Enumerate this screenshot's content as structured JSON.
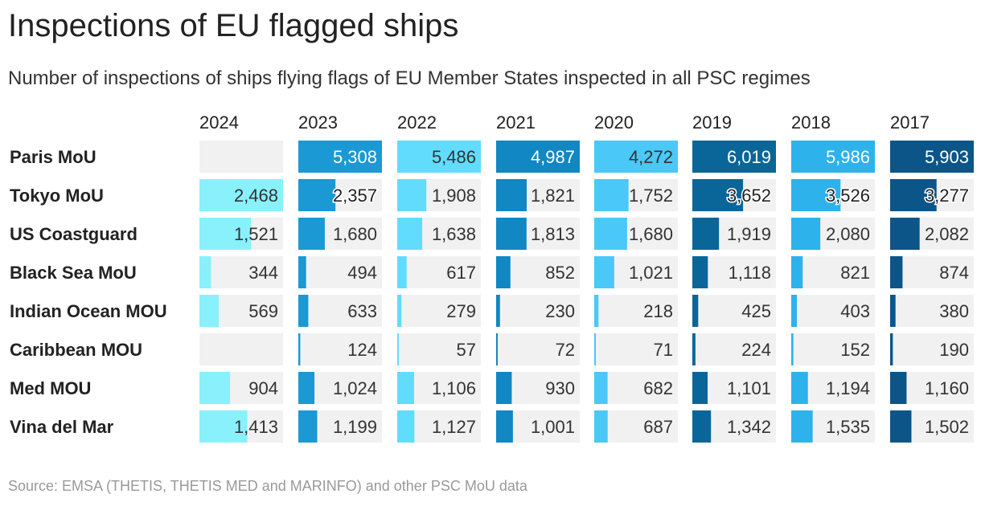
{
  "title": "Inspections of EU flagged ships",
  "subtitle": "Number of inspections of ships flying flags of EU Member States inspected in all PSC regimes",
  "source": "Source: EMSA (THETIS, THETIS MED and MARINFO) and other PSC MoU data",
  "chart_data": {
    "type": "table",
    "title": "Inspections of EU flagged ships",
    "columns": [
      "2024",
      "2023",
      "2022",
      "2021",
      "2020",
      "2019",
      "2018",
      "2017"
    ],
    "rows": [
      "Paris MoU",
      "Tokyo MoU",
      "US Coastguard",
      "Black Sea MoU",
      "Indian Ocean MOU",
      "Caribbean MOU",
      "Med MOU",
      "Vina del Mar"
    ],
    "values": [
      [
        null,
        5308,
        5486,
        4987,
        4272,
        6019,
        5986,
        5903
      ],
      [
        2468,
        2357,
        1908,
        1821,
        1752,
        3652,
        3526,
        3277
      ],
      [
        1521,
        1680,
        1638,
        1813,
        1680,
        1919,
        2080,
        2082
      ],
      [
        344,
        494,
        617,
        852,
        1021,
        1118,
        821,
        874
      ],
      [
        569,
        633,
        279,
        230,
        218,
        425,
        403,
        380
      ],
      [
        null,
        124,
        57,
        72,
        71,
        224,
        152,
        190
      ],
      [
        904,
        1024,
        1106,
        930,
        682,
        1101,
        1194,
        1160
      ],
      [
        1413,
        1199,
        1127,
        1001,
        687,
        1342,
        1535,
        1502
      ]
    ],
    "column_max": [
      2468,
      5308,
      5486,
      4987,
      4272,
      6019,
      5986,
      5903
    ],
    "column_colors": [
      "#88f1fc",
      "#1a99d4",
      "#62dcfc",
      "#1187c3",
      "#4ac8f7",
      "#0a6699",
      "#2db2ec",
      "#0b5589"
    ],
    "label_style": [
      "dark",
      "light",
      "dark",
      "light",
      "dark",
      "light",
      "light",
      "light"
    ],
    "number_format": "en-US thousands separator"
  }
}
